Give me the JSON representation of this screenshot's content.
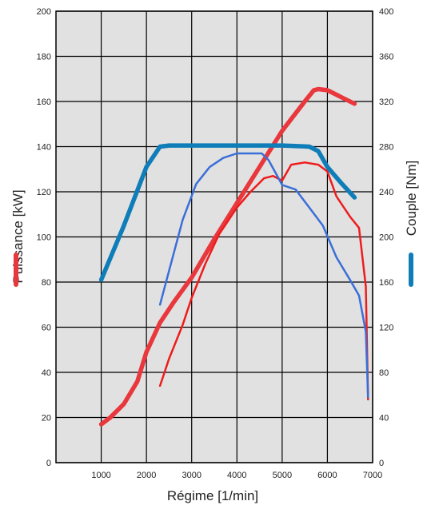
{
  "chart_data": {
    "type": "line",
    "xlabel": "Régime [1/min]",
    "ylabel_left": "Puissance [kW]",
    "ylabel_right": "Couple [Nm]",
    "xlim": [
      0,
      7000
    ],
    "ylim_left": [
      0,
      200
    ],
    "ylim_right": [
      0,
      400
    ],
    "grid": true,
    "x_ticks": [
      1000,
      2000,
      3000,
      4000,
      5000,
      6000,
      7000
    ],
    "y_left_ticks": [
      0,
      20,
      40,
      60,
      80,
      100,
      120,
      140,
      160,
      180,
      200
    ],
    "y_right_ticks": [
      0,
      40,
      80,
      120,
      160,
      200,
      240,
      280,
      320,
      360,
      400
    ],
    "colors": {
      "power": "#e8383d",
      "power_thin": "#ee1c1c",
      "torque": "#0f7db8",
      "torque_thin": "#3a6fd8",
      "plot_bg": "#e1e1e1",
      "grid": "#000000"
    },
    "series": [
      {
        "axis": "left",
        "color": "power",
        "width": 5.5,
        "x": [
          1000,
          1200,
          1500,
          1800,
          2000,
          2300,
          2600,
          3000,
          3500,
          4000,
          4500,
          5000,
          5500,
          5700,
          5800,
          6000,
          6200,
          6350,
          6600
        ],
        "y": [
          17,
          20,
          26,
          36,
          49,
          62,
          71,
          82,
          99,
          115,
          131,
          147,
          160,
          165,
          165.5,
          165,
          163,
          161.5,
          159
        ]
      },
      {
        "axis": "left",
        "color": "power_thin",
        "width": 2.5,
        "x": [
          2300,
          2500,
          2800,
          3000,
          3300,
          3600,
          4000,
          4300,
          4600,
          4800,
          5000,
          5200,
          5500,
          5800,
          6000,
          6200,
          6500,
          6700,
          6850,
          6900
        ],
        "y": [
          34,
          46,
          61,
          73,
          88,
          101,
          113,
          120,
          126,
          127,
          125,
          132,
          133,
          132,
          129,
          118,
          109,
          104,
          78,
          28
        ]
      },
      {
        "axis": "right",
        "color": "torque",
        "width": 5.5,
        "x": [
          1000,
          1500,
          2000,
          2300,
          2500,
          3000,
          4000,
          5000,
          5600,
          5800,
          6000,
          6300,
          6600
        ],
        "y": [
          162,
          210,
          262,
          280,
          281,
          281,
          281,
          281,
          280,
          276,
          262,
          248,
          235
        ]
      },
      {
        "axis": "right",
        "color": "torque_thin",
        "width": 2.5,
        "x": [
          2300,
          2500,
          2800,
          3100,
          3400,
          3700,
          4000,
          4300,
          4550,
          4700,
          5000,
          5300,
          5600,
          5900,
          6200,
          6500,
          6700,
          6850,
          6900
        ],
        "y": [
          140,
          170,
          215,
          247,
          262,
          270,
          274,
          274,
          274,
          268,
          246,
          242,
          226,
          210,
          182,
          162,
          148,
          116,
          58
        ]
      }
    ]
  }
}
